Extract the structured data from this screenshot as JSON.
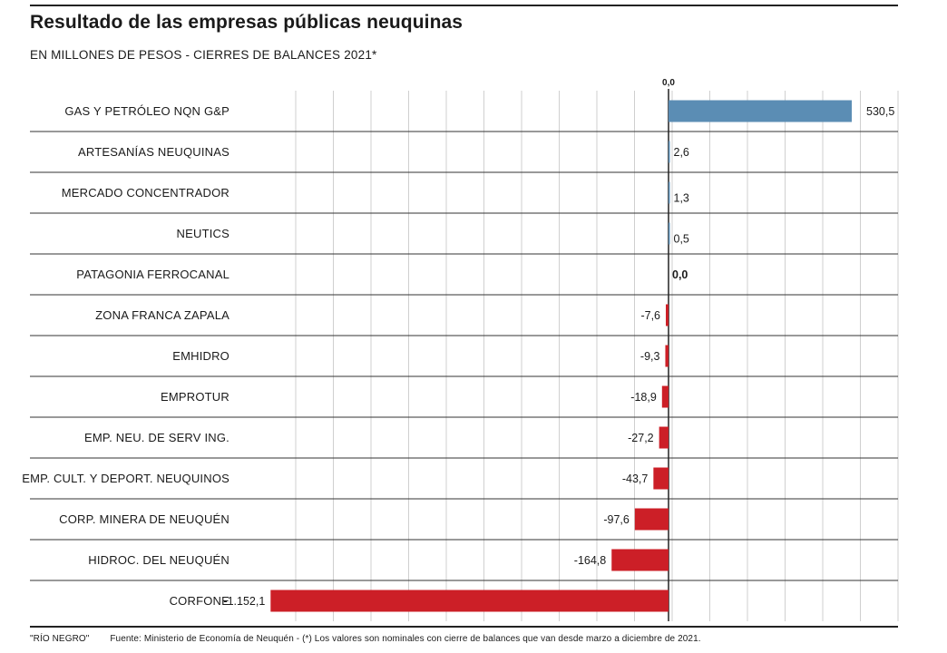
{
  "header": {
    "title": "Resultado de las empresas públicas neuquinas",
    "subtitle": "EN MILLONES DE PESOS - CIERRES DE BALANCES 2021*"
  },
  "footer": {
    "credit": "\"RÍO NEGRO\"",
    "source": "Fuente: Ministerio de Economía de Neuquén - (*) Los valores son nominales con cierre de balances que van desde marzo a diciembre de 2021."
  },
  "colors": {
    "positive": "#5b8db4",
    "negative": "#cc1f27",
    "grid": "#cfcfcf",
    "rule": "#333333"
  },
  "chart_data": {
    "type": "bar",
    "orientation": "horizontal",
    "title": "Resultado de las empresas públicas neuquinas",
    "subtitle": "EN MILLONES DE PESOS - CIERRES DE BALANCES 2021*",
    "zero_label": "0,0",
    "xlim": [
      -1100,
      550
    ],
    "categories": [
      "GAS Y PETRÓLEO NQN G&P",
      "ARTESANÍAS NEUQUINAS",
      "MERCADO CONCENTRADOR",
      "NEUTICS",
      "PATAGONIA FERROCANAL",
      "ZONA FRANCA ZAPALA",
      "EMHIDRO",
      "EMPROTUR",
      "EMP. NEU. DE SERV ING.",
      "EMP. CULT. Y DEPORT. NEUQUINOS",
      "CORP. MINERA DE NEUQUÉN",
      "HIDROC. DEL NEUQUÉN",
      "CORFONE"
    ],
    "values": [
      530.5,
      2.6,
      1.3,
      0.5,
      0.0,
      -7.6,
      -9.3,
      -18.9,
      -27.2,
      -43.7,
      -97.6,
      -164.8,
      -1152.1
    ],
    "value_labels": [
      "530,5",
      "2,6",
      "1,3",
      "0,5",
      "0,0",
      "-7,6",
      "-9,3",
      "-18,9",
      "-27,2",
      "-43,7",
      "-97,6",
      "-164,8",
      "-1.152,1"
    ]
  }
}
